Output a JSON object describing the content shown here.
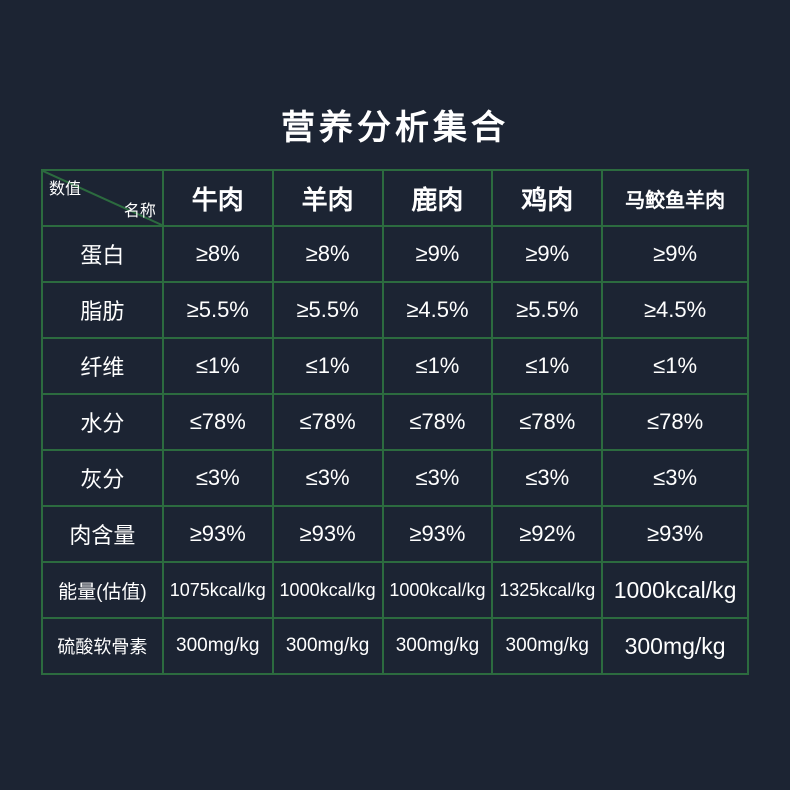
{
  "title": "营养分析集合",
  "corner": {
    "top": "数值",
    "bottom": "名称"
  },
  "columns": [
    "牛肉",
    "羊肉",
    "鹿肉",
    "鸡肉",
    "马鲛鱼羊肉"
  ],
  "rows": [
    {
      "label": "蛋白",
      "cells": [
        "≥8%",
        "≥8%",
        "≥9%",
        "≥9%",
        "≥9%"
      ]
    },
    {
      "label": "脂肪",
      "cells": [
        "≥5.5%",
        "≥5.5%",
        "≥4.5%",
        "≥5.5%",
        "≥4.5%"
      ]
    },
    {
      "label": "纤维",
      "cells": [
        "≤1%",
        "≤1%",
        "≤1%",
        "≤1%",
        "≤1%"
      ]
    },
    {
      "label": "水分",
      "cells": [
        "≤78%",
        "≤78%",
        "≤78%",
        "≤78%",
        "≤78%"
      ]
    },
    {
      "label": "灰分",
      "cells": [
        "≤3%",
        "≤3%",
        "≤3%",
        "≤3%",
        "≤3%"
      ]
    },
    {
      "label": "肉含量",
      "cells": [
        "≥93%",
        "≥93%",
        "≥93%",
        "≥92%",
        "≥93%"
      ]
    },
    {
      "label": "能量(估值)",
      "cells": [
        "1075kcal/kg",
        "1000kcal/kg",
        "1000kcal/kg",
        "1325kcal/kg",
        "1000kcal/kg"
      ]
    },
    {
      "label": "硫酸软骨素",
      "cells": [
        "300mg/kg",
        "300mg/kg",
        "300mg/kg",
        "300mg/kg",
        "300mg/kg"
      ]
    }
  ],
  "colors": {
    "background": "#1c2433",
    "border": "#2c6b3f",
    "text": "#ffffff"
  }
}
